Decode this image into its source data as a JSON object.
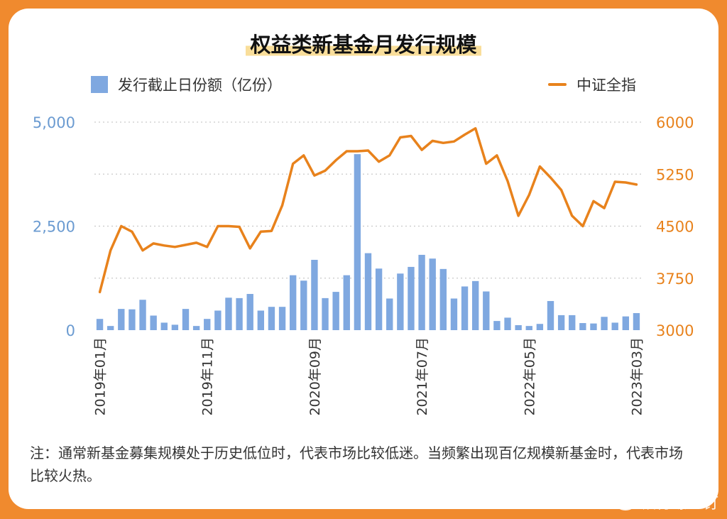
{
  "title": "权益类新基金月发行规模",
  "legend": {
    "bar_label": "发行截止日份额（亿份）",
    "line_label": "中证全指"
  },
  "note": "注：通常新基金募集规模处于历史低位时，代表市场比较低迷。当频繁出现百亿规模新基金时，代表市场比较火热。",
  "watermark": "银行螺丝钉",
  "colors": {
    "bar": "#7FA8E0",
    "line": "#E8821C",
    "left_axis": "#6B9BD1",
    "right_axis": "#E8821C",
    "background": "#F08A2E"
  },
  "chart_data": {
    "type": "bar+line",
    "title": "权益类新基金月发行规模",
    "x_tick_labels": [
      "2019年01月",
      "2019年11月",
      "2020年09月",
      "2021年07月",
      "2022年05月",
      "2023年03月"
    ],
    "x_tick_indices": [
      0,
      10,
      20,
      30,
      40,
      50
    ],
    "left_axis": {
      "ylim": [
        0,
        5000
      ],
      "ticks": [
        "0",
        "2,500",
        "5,000"
      ],
      "tick_values": [
        0,
        2500,
        5000
      ]
    },
    "right_axis": {
      "ylim": [
        3000,
        6000
      ],
      "ticks": [
        "3000",
        "3750",
        "4500",
        "5250",
        "6000"
      ],
      "tick_values": [
        3000,
        3750,
        4500,
        5250,
        6000
      ]
    },
    "grid": true,
    "legend_position": "top",
    "series": [
      {
        "name": "发行截止日份额（亿份）",
        "type": "bar",
        "axis": "left",
        "values": [
          270,
          100,
          510,
          500,
          730,
          350,
          180,
          130,
          510,
          100,
          270,
          470,
          780,
          770,
          870,
          470,
          560,
          560,
          1320,
          1190,
          1690,
          770,
          920,
          1320,
          4230,
          1850,
          1480,
          760,
          1360,
          1520,
          1810,
          1720,
          1470,
          760,
          1050,
          1180,
          930,
          220,
          300,
          120,
          100,
          150,
          700,
          360,
          360,
          170,
          160,
          320,
          180,
          330,
          410
        ]
      },
      {
        "name": "中证全指",
        "type": "line",
        "axis": "right",
        "values": [
          3550,
          4150,
          4500,
          4420,
          4150,
          4250,
          4220,
          4200,
          4230,
          4260,
          4200,
          4500,
          4500,
          4490,
          4180,
          4420,
          4430,
          4800,
          5400,
          5520,
          5230,
          5300,
          5450,
          5580,
          5580,
          5590,
          5430,
          5520,
          5780,
          5800,
          5600,
          5730,
          5700,
          5720,
          5820,
          5910,
          5400,
          5520,
          5150,
          4650,
          4950,
          5360,
          5200,
          5020,
          4650,
          4500,
          4860,
          4760,
          5140,
          5130,
          5100
        ]
      }
    ]
  }
}
